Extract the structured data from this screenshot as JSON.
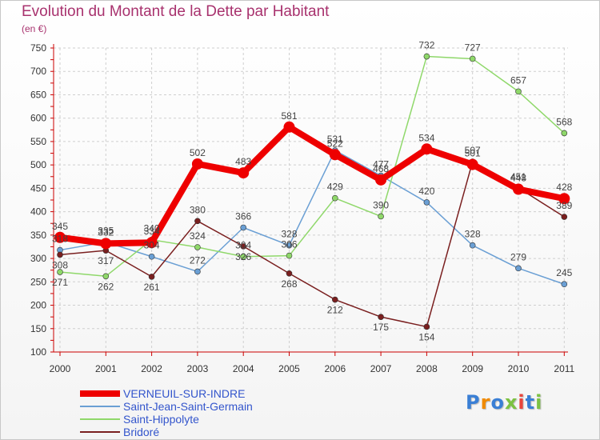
{
  "header": {
    "title": "Evolution du Montant de la Dette par Habitant",
    "unit": "(en €)"
  },
  "logo": {
    "text": "Proxiti",
    "colors": [
      "#3a7fd5",
      "#f08a00",
      "#3a7fd5",
      "#7cc242",
      "#e8453c",
      "#3a7fd5",
      "#7cc242"
    ]
  },
  "chart_data": {
    "type": "line",
    "title": "Evolution du Montant de la Dette par Habitant",
    "ylabel": "(en €)",
    "xlabel": "",
    "ylim": [
      100,
      750
    ],
    "yticks": [
      100,
      150,
      200,
      250,
      300,
      350,
      400,
      450,
      500,
      550,
      600,
      650,
      700,
      750
    ],
    "grid": true,
    "legend_position": "bottom-left",
    "x": [
      "2000",
      "2001",
      "2002",
      "2003",
      "2004",
      "2005",
      "2006",
      "2007",
      "2008",
      "2009",
      "2010",
      "2011"
    ],
    "series": [
      {
        "name": "VERNEUIL-SUR-INDRE",
        "color": "#ee0000",
        "values": [
          345,
          332,
          334,
          502,
          483,
          581,
          522,
          468,
          534,
          501,
          448,
          428
        ]
      },
      {
        "name": "Saint-Jean-Saint-Germain",
        "color": "#6a9fd4",
        "values": [
          318,
          335,
          304,
          272,
          366,
          328,
          531,
          477,
          420,
          328,
          279,
          245
        ]
      },
      {
        "name": "Saint-Hippolyte",
        "color": "#8fd86a",
        "values": [
          271,
          262,
          340,
          324,
          304,
          306,
          429,
          390,
          732,
          727,
          657,
          568
        ]
      },
      {
        "name": "Bridoré",
        "color": "#7a1f1f",
        "values": [
          308,
          317,
          261,
          380,
          326,
          268,
          212,
          175,
          154,
          507,
          451,
          389
        ]
      }
    ]
  }
}
